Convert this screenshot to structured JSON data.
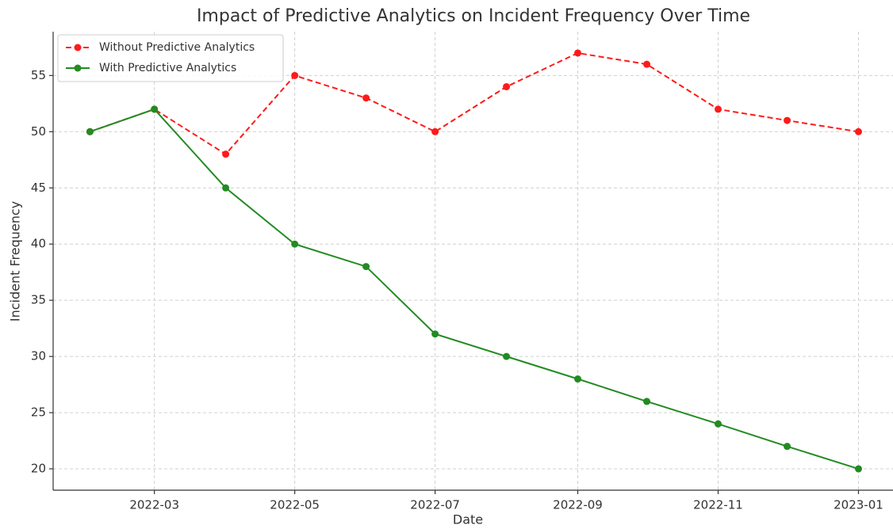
{
  "chart_data": {
    "type": "line",
    "title": "Impact of Predictive Analytics on Incident Frequency Over Time",
    "x_label": "Date",
    "y_label": "Incident Frequency",
    "x": [
      "2022-02",
      "2022-03",
      "2022-04",
      "2022-05",
      "2022-06",
      "2022-07",
      "2022-08",
      "2022-09",
      "2022-10",
      "2022-11",
      "2022-12",
      "2023-01"
    ],
    "series": [
      {
        "name": "Without Predictive Analytics",
        "color": "#ff1a1a",
        "dashed": true,
        "values": [
          50,
          52,
          48,
          55,
          53,
          50,
          54,
          57,
          56,
          52,
          51,
          50
        ]
      },
      {
        "name": "With Predictive Analytics",
        "color": "#228b22",
        "dashed": false,
        "values": [
          50,
          52,
          45,
          40,
          38,
          32,
          30,
          28,
          26,
          24,
          22,
          20
        ]
      }
    ],
    "xlim": [
      "2022-01-16",
      "2023-01-16"
    ],
    "xticks": [
      "2022-03",
      "2022-05",
      "2022-07",
      "2022-09",
      "2022-11",
      "2023-01"
    ],
    "ylim": [
      18.1,
      58.9
    ],
    "yticks": [
      20,
      25,
      30,
      35,
      40,
      45,
      50,
      55
    ],
    "grid": true,
    "legend": "upper left"
  }
}
